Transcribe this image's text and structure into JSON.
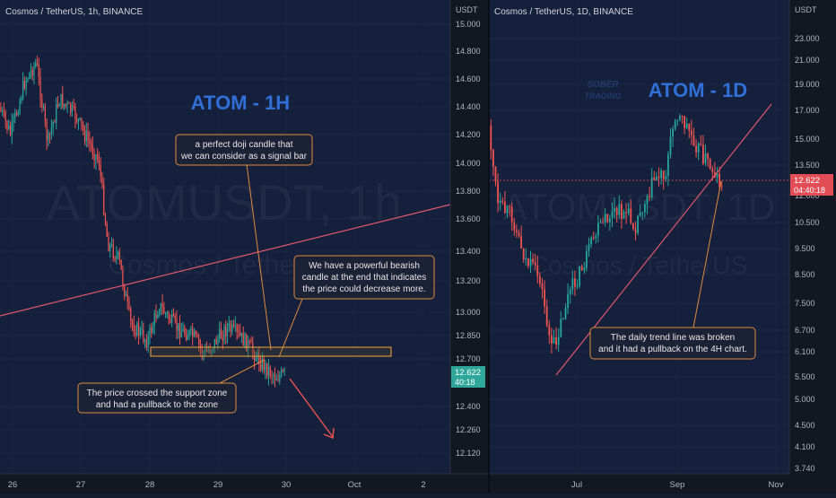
{
  "colors": {
    "background": "#15203d",
    "axis_background": "#131722",
    "bull": "#26a69a",
    "bear": "#ef5350",
    "trend_line": "#e0566a",
    "support_zone": "#f7a738",
    "callout_bg": "#1b2236",
    "callout_border": "#e08a3c",
    "title_blue": "#2f6fd6",
    "price_tag": "#2fa69a",
    "price_tag_right": "#e34d55"
  },
  "chart_data": [
    {
      "type": "candlestick",
      "symbol_header": "Cosmos / TetherUS, 1h, BINANCE",
      "watermark_main": "ATOMUSDT, 1h",
      "watermark_sub": "Cosmos / TetherUS",
      "overlay_title": "ATOM - 1H",
      "axis_currency": "USDT",
      "y_ticks": [
        "15.000",
        "14.800",
        "14.600",
        "14.400",
        "14.200",
        "14.000",
        "13.800",
        "13.600",
        "13.400",
        "13.200",
        "13.000",
        "12.850",
        "12.700",
        "12.400",
        "12.260",
        "12.120"
      ],
      "x_ticks": [
        "26",
        "27",
        "28",
        "29",
        "30",
        "Oct",
        "2"
      ],
      "current_price": "12.622",
      "countdown": "40:18",
      "support_zone": [
        12.76,
        12.83
      ],
      "trend_line": {
        "from": {
          "day": 25.9,
          "price": 12.98
        },
        "to": {
          "day": 2.4,
          "price": 13.7
        }
      },
      "forecast_arrow": "down",
      "annotations": [
        {
          "text": [
            "a perfect doji candle that",
            "we can consider as a signal bar"
          ]
        },
        {
          "text": [
            "We have a powerful bearish",
            "candle at the end that indicates",
            "the price could decrease more."
          ]
        },
        {
          "text": [
            "The price crossed the support zone",
            "and had a pullback to the zone"
          ]
        }
      ]
    },
    {
      "type": "candlestick",
      "symbol_header": "Cosmos / TetherUS, 1D, BINANCE",
      "watermark_main": "ATOMUSDT, 1D",
      "watermark_sub": "Cosmos / TetherUS",
      "overlay_title": "ATOM - 1D",
      "axis_currency": "USDT",
      "y_scale": "log",
      "y_ticks": [
        "23.000",
        "21.000",
        "19.000",
        "17.000",
        "15.000",
        "13.500",
        "12.000",
        "10.500",
        "9.500",
        "8.500",
        "7.500",
        "6.700",
        "6.100",
        "5.500",
        "5.000",
        "4.500",
        "4.100",
        "3.740"
      ],
      "x_ticks": [
        "Jul",
        "Sep",
        "Nov"
      ],
      "current_price": "12.622",
      "countdown": "04:40:18",
      "trend_line": "rising from the June low near 5.4 through the September breakdown",
      "annotations": [
        {
          "text": [
            "The daily trend line was broken",
            "and it had a pullback on the 4H chart."
          ]
        }
      ]
    }
  ],
  "logo": {
    "line1": "SOBER",
    "line2": "TRADING"
  }
}
